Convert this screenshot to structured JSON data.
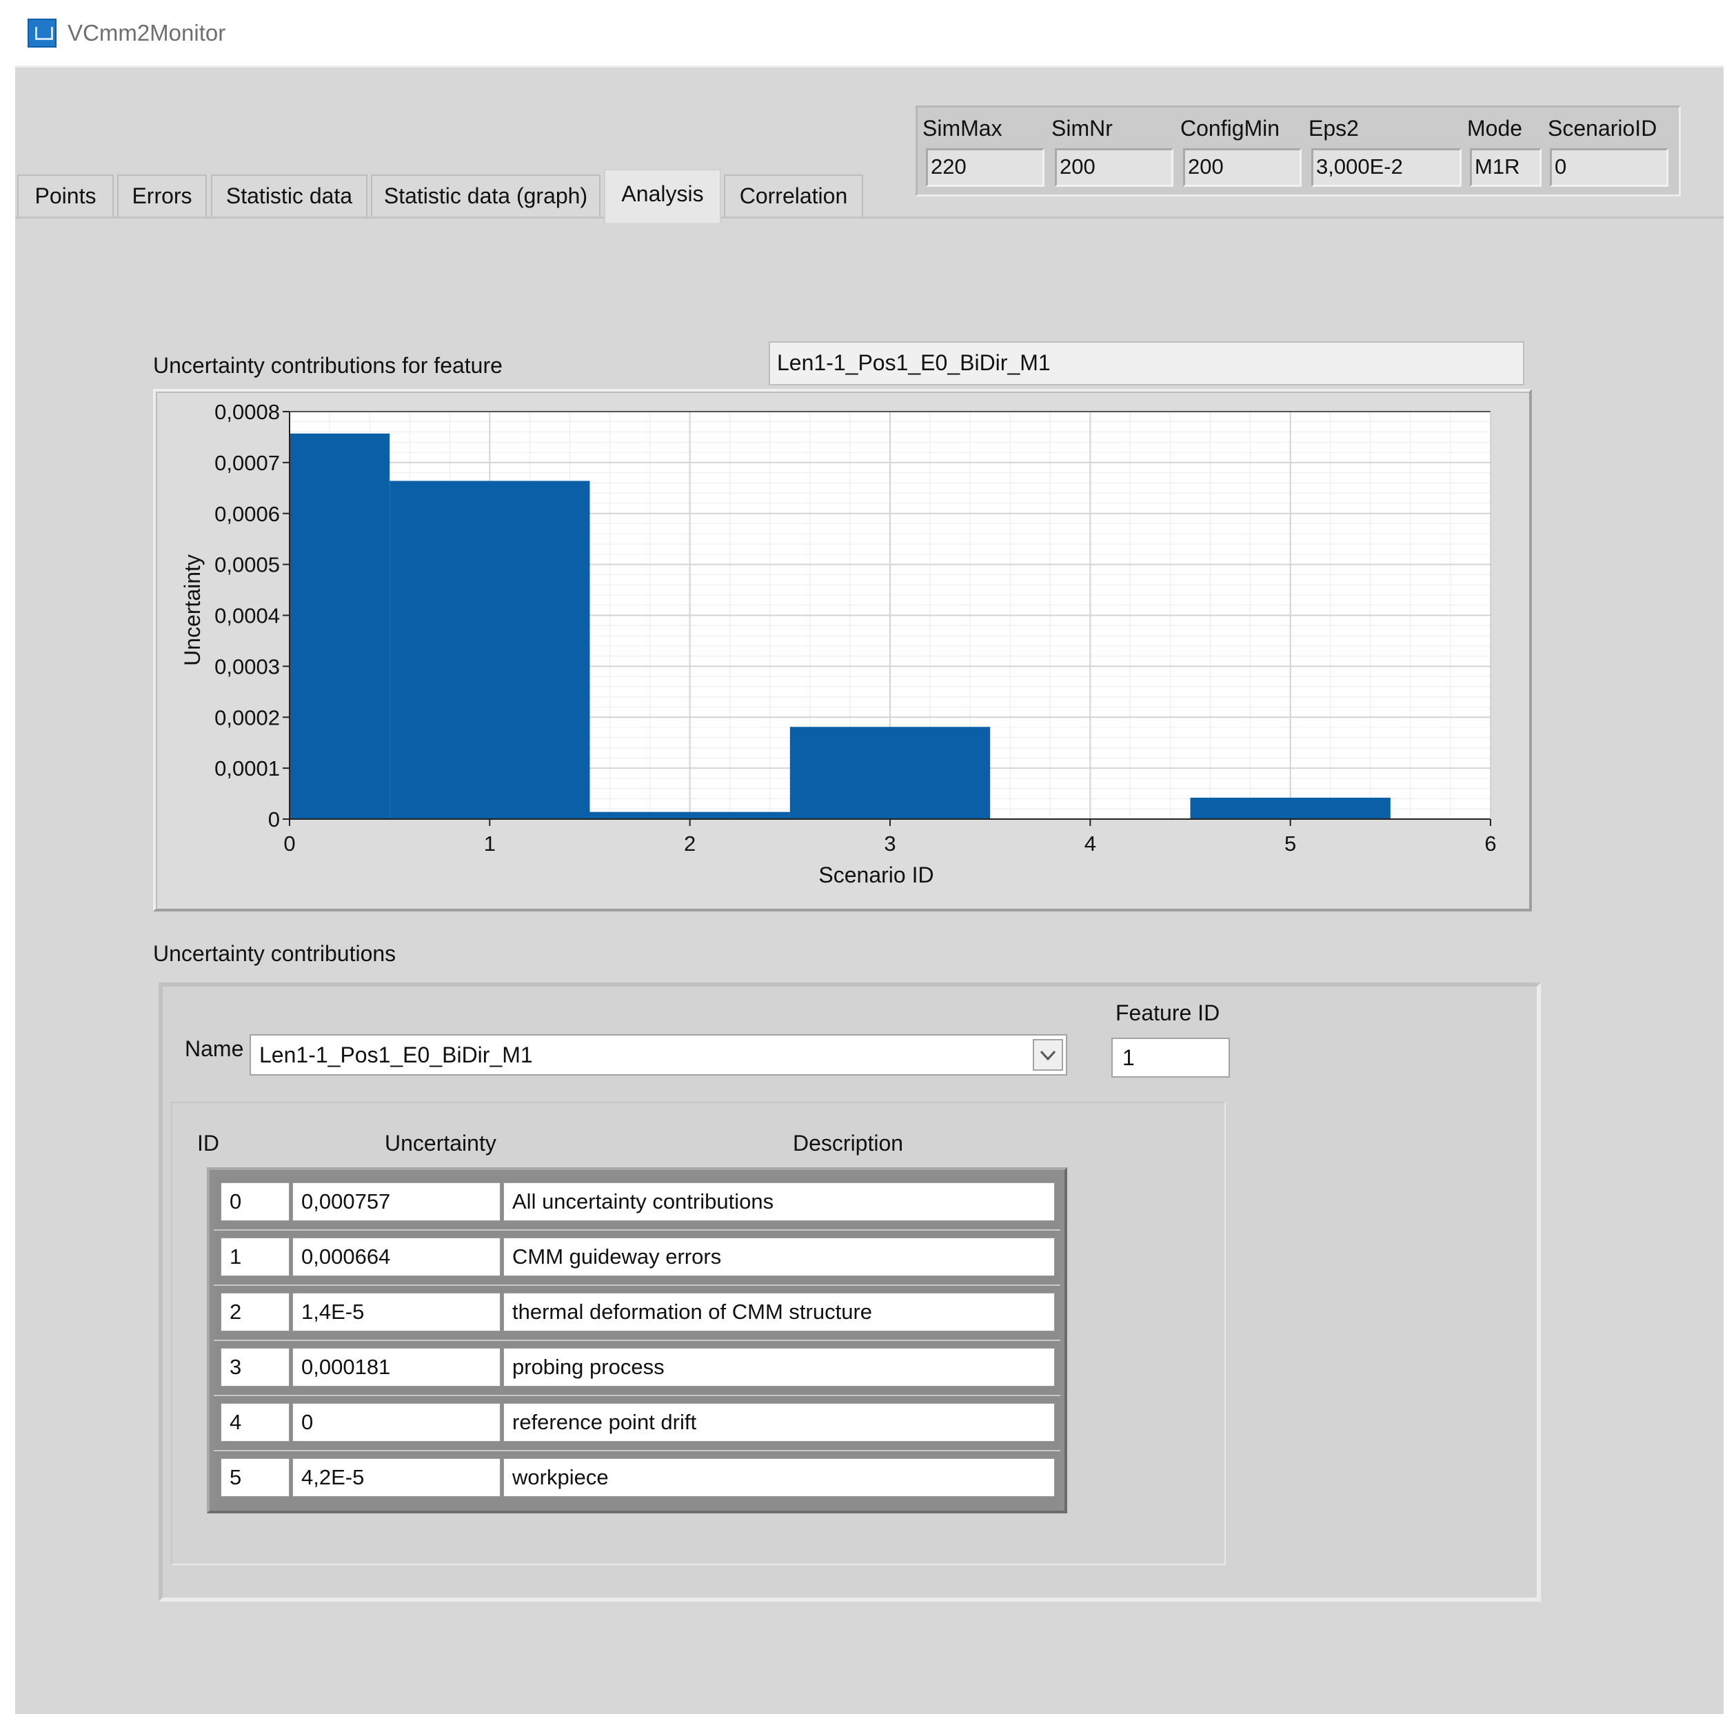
{
  "window": {
    "title": "VCmm2Monitor"
  },
  "tabs": [
    {
      "label": "Points"
    },
    {
      "label": "Errors"
    },
    {
      "label": "Statistic data"
    },
    {
      "label": "Statistic data (graph)"
    },
    {
      "label": "Analysis",
      "active": true
    },
    {
      "label": "Correlation"
    }
  ],
  "sim_params": {
    "simmax": {
      "label": "SimMax",
      "value": "220"
    },
    "simnr": {
      "label": "SimNr",
      "value": "200"
    },
    "configmin": {
      "label": "ConfigMin",
      "value": "200"
    },
    "eps2": {
      "label": "Eps2",
      "value": "3,000E-2"
    },
    "mode": {
      "label": "Mode",
      "value": "M1R"
    },
    "scenarioid": {
      "label": "ScenarioID",
      "value": "0"
    }
  },
  "chart_section": {
    "label": "Uncertainty contributions for feature",
    "feature_name": "Len1-1_Pos1_E0_BiDir_M1"
  },
  "chart_data": {
    "type": "bar",
    "x": [
      0,
      1,
      2,
      3,
      4,
      5
    ],
    "values": [
      0.000757,
      0.000664,
      1.4e-05,
      0.000181,
      0,
      4.2e-05
    ],
    "xlabel": "Scenario ID",
    "ylabel": "Uncertainty",
    "xlim": [
      0,
      6
    ],
    "ylim": [
      0,
      0.0008
    ],
    "x_ticks": [
      "0",
      "1",
      "2",
      "3",
      "4",
      "5",
      "6"
    ],
    "y_ticks": [
      "0",
      "0,0001",
      "0,0002",
      "0,0003",
      "0,0004",
      "0,0005",
      "0,0006",
      "0,0007",
      "0,0008"
    ],
    "grid": true,
    "bar_color": "#0a5fa6"
  },
  "contributions": {
    "label": "Uncertainty contributions",
    "name_label": "Name",
    "name_value": "Len1-1_Pos1_E0_BiDir_M1",
    "feature_id_label": "Feature ID",
    "feature_id_value": "1",
    "columns": {
      "id": "ID",
      "uncertainty": "Uncertainty",
      "description": "Description"
    },
    "rows": [
      {
        "id": "0",
        "uncertainty": "0,000757",
        "description": "All uncertainty contributions"
      },
      {
        "id": "1",
        "uncertainty": "0,000664",
        "description": "CMM guideway errors"
      },
      {
        "id": "2",
        "uncertainty": "1,4E-5",
        "description": "thermal deformation of CMM structure"
      },
      {
        "id": "3",
        "uncertainty": "0,000181",
        "description": "probing process"
      },
      {
        "id": "4",
        "uncertainty": "0",
        "description": "reference point drift"
      },
      {
        "id": "5",
        "uncertainty": "4,2E-5",
        "description": "workpiece"
      }
    ]
  }
}
